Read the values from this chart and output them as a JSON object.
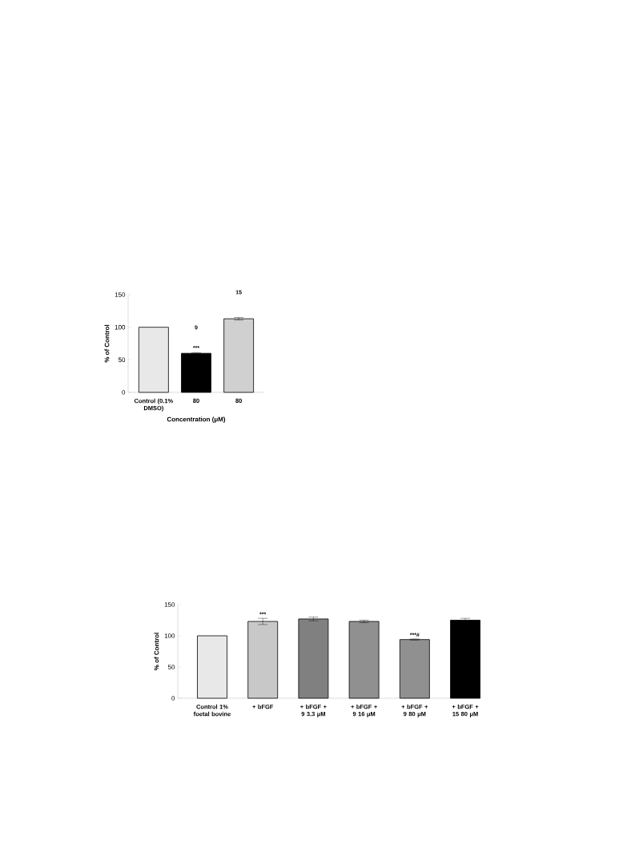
{
  "chart_data": [
    {
      "type": "bar",
      "ylabel": "% of Control",
      "xlabel": "Concentration (μM)",
      "categories": [
        "Control (0.1% DMSO)",
        "80",
        "80"
      ],
      "values": [
        100,
        60,
        113
      ],
      "errors": [
        null,
        1,
        2
      ],
      "colors": [
        "#e8e8e8",
        "#000000",
        "#d0d0d0"
      ],
      "ylim": [
        0,
        150
      ],
      "yticks": [
        0,
        50,
        100,
        150
      ],
      "annotations": [
        "9",
        {
          "text": "***",
          "x": "80",
          "y": 64
        },
        "15"
      ]
    },
    {
      "type": "bar",
      "ylabel": "% of Control",
      "categories": [
        "Control 1% foetal bovine",
        "+ bFGF",
        "+ bFGF + 9 3.3 μM",
        "+ bFGF + 9 16 μM",
        "+ bFGF + 9 80 μM",
        "+ bFGF + 15 80 μM"
      ],
      "values": [
        100,
        123,
        127,
        123,
        94,
        125
      ],
      "errors": [
        null,
        5,
        3,
        2,
        1,
        3
      ],
      "colors": [
        "#e8e8e8",
        "#c8c8c8",
        "#808080",
        "#909090",
        "#909090",
        "#000000"
      ],
      "ylim": [
        0,
        150
      ],
      "yticks": [
        0,
        50,
        100,
        150
      ],
      "annotations": [
        {
          "text": "***",
          "x": "+ bFGF",
          "y": 130
        },
        {
          "text": "***#",
          "x": "+ bFGF + 9 80 μM",
          "y": 97
        }
      ]
    }
  ]
}
